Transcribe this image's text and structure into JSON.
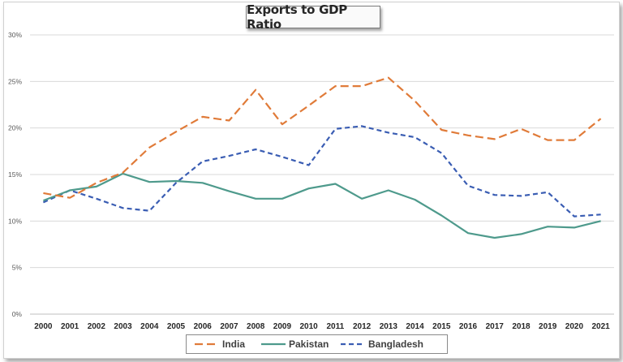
{
  "chart_data": {
    "type": "line",
    "title": "Exports to GDP Ratio",
    "xlabel": "",
    "ylabel": "",
    "ylim": [
      0,
      30
    ],
    "y_ticks": [
      "0%",
      "5%",
      "10%",
      "15%",
      "20%",
      "25%",
      "30%"
    ],
    "y_tick_values": [
      0,
      5,
      10,
      15,
      20,
      25,
      30
    ],
    "grid": true,
    "legend_position": "bottom",
    "categories": [
      "2000",
      "2001",
      "2002",
      "2003",
      "2004",
      "2005",
      "2006",
      "2007",
      "2008",
      "2009",
      "2010",
      "2011",
      "2012",
      "2013",
      "2014",
      "2015",
      "2016",
      "2017",
      "2018",
      "2019",
      "2020",
      "2021"
    ],
    "series": [
      {
        "name": "India",
        "color": "#e07b39",
        "dash": "long-dash",
        "values": [
          13.0,
          12.5,
          14.1,
          15.2,
          17.9,
          19.6,
          21.2,
          20.8,
          24.1,
          20.4,
          22.4,
          24.5,
          24.5,
          25.4,
          22.9,
          19.8,
          19.2,
          18.8,
          19.9,
          18.7,
          18.7,
          21.0
        ]
      },
      {
        "name": "Pakistan",
        "color": "#4e9a8c",
        "dash": "solid",
        "values": [
          12.2,
          13.3,
          13.7,
          15.1,
          14.2,
          14.3,
          14.1,
          13.2,
          12.4,
          12.4,
          13.5,
          14.0,
          12.4,
          13.3,
          12.3,
          10.6,
          8.7,
          8.2,
          8.6,
          9.4,
          9.3,
          10.0
        ]
      },
      {
        "name": "Bangladesh",
        "color": "#3a5db3",
        "dash": "short-dash",
        "values": [
          12.0,
          13.3,
          12.4,
          11.4,
          11.1,
          14.1,
          16.4,
          17.0,
          17.7,
          16.9,
          16.0,
          19.9,
          20.2,
          19.5,
          19.0,
          17.3,
          13.8,
          12.8,
          12.7,
          13.1,
          10.5,
          10.7
        ]
      }
    ]
  }
}
